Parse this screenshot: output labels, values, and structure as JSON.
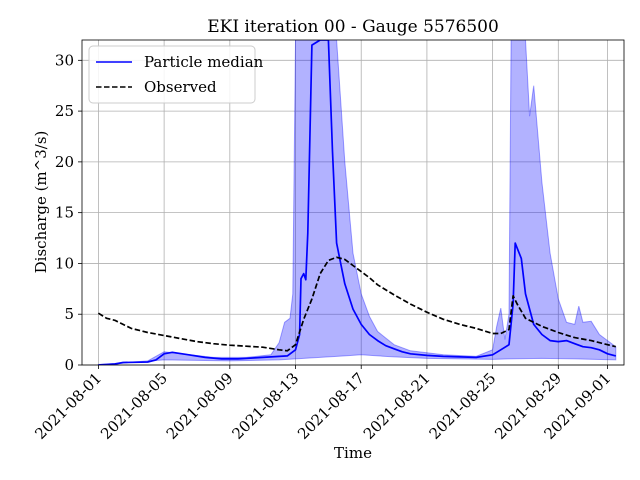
{
  "chart_data": {
    "type": "line",
    "title": "EKI iteration 00 - Gauge 5576500",
    "xlabel": "Time",
    "ylabel": "Discharge (m^3/s)",
    "x_start": "2021-08-01",
    "x_end": "2021-09-01",
    "xlim": [
      "2021-07-31",
      "2021-09-02"
    ],
    "ylim": [
      0,
      32
    ],
    "yticks": [
      0,
      5,
      10,
      15,
      20,
      25,
      30
    ],
    "xticks": [
      "2021-08-01",
      "2021-08-05",
      "2021-08-09",
      "2021-08-13",
      "2021-08-17",
      "2021-08-21",
      "2021-08-25",
      "2021-08-29",
      "2021-09-01"
    ],
    "grid": true,
    "legend": {
      "position": "top-left",
      "entries": [
        "Particle median",
        "Observed"
      ]
    },
    "series": [
      {
        "name": "Particle median",
        "color": "#0000ff",
        "style": "solid",
        "points": [
          [
            "2021-08-01 00:00",
            0.0
          ],
          [
            "2021-08-02 00:00",
            0.1
          ],
          [
            "2021-08-02 12:00",
            0.25
          ],
          [
            "2021-08-04 00:00",
            0.3
          ],
          [
            "2021-08-04 12:00",
            0.5
          ],
          [
            "2021-08-05 00:00",
            1.1
          ],
          [
            "2021-08-05 12:00",
            1.25
          ],
          [
            "2021-08-06 12:00",
            1.0
          ],
          [
            "2021-08-07 12:00",
            0.75
          ],
          [
            "2021-08-08 12:00",
            0.6
          ],
          [
            "2021-08-09 12:00",
            0.6
          ],
          [
            "2021-08-10 12:00",
            0.7
          ],
          [
            "2021-08-11 12:00",
            0.8
          ],
          [
            "2021-08-12 12:00",
            0.9
          ],
          [
            "2021-08-13 00:00",
            1.5
          ],
          [
            "2021-08-13 06:00",
            3.0
          ],
          [
            "2021-08-13 08:00",
            8.5
          ],
          [
            "2021-08-13 12:00",
            9.0
          ],
          [
            "2021-08-13 15:00",
            8.4
          ],
          [
            "2021-08-13 18:00",
            13.0
          ],
          [
            "2021-08-14 00:00",
            31.5
          ],
          [
            "2021-08-14 12:00",
            32.0
          ],
          [
            "2021-08-15 00:00",
            32.0
          ],
          [
            "2021-08-15 06:00",
            21.0
          ],
          [
            "2021-08-15 12:00",
            12.0
          ],
          [
            "2021-08-16 00:00",
            8.0
          ],
          [
            "2021-08-16 12:00",
            5.5
          ],
          [
            "2021-08-17 00:00",
            4.0
          ],
          [
            "2021-08-17 12:00",
            3.0
          ],
          [
            "2021-08-18 00:00",
            2.4
          ],
          [
            "2021-08-18 12:00",
            1.9
          ],
          [
            "2021-08-19 00:00",
            1.6
          ],
          [
            "2021-08-19 12:00",
            1.3
          ],
          [
            "2021-08-20 00:00",
            1.1
          ],
          [
            "2021-08-21 00:00",
            0.95
          ],
          [
            "2021-08-22 00:00",
            0.85
          ],
          [
            "2021-08-23 00:00",
            0.8
          ],
          [
            "2021-08-24 00:00",
            0.75
          ],
          [
            "2021-08-25 00:00",
            1.0
          ],
          [
            "2021-08-25 12:00",
            1.5
          ],
          [
            "2021-08-26 00:00",
            2.0
          ],
          [
            "2021-08-26 06:00",
            6.0
          ],
          [
            "2021-08-26 09:00",
            12.0
          ],
          [
            "2021-08-26 12:00",
            11.5
          ],
          [
            "2021-08-26 18:00",
            10.5
          ],
          [
            "2021-08-27 00:00",
            7.0
          ],
          [
            "2021-08-27 12:00",
            4.0
          ],
          [
            "2021-08-28 00:00",
            3.0
          ],
          [
            "2021-08-28 12:00",
            2.4
          ],
          [
            "2021-08-29 00:00",
            2.3
          ],
          [
            "2021-08-29 12:00",
            2.4
          ],
          [
            "2021-08-30 00:00",
            2.1
          ],
          [
            "2021-08-30 12:00",
            1.8
          ],
          [
            "2021-08-31 00:00",
            1.7
          ],
          [
            "2021-08-31 12:00",
            1.5
          ],
          [
            "2021-09-01 00:00",
            1.1
          ],
          [
            "2021-09-01 12:00",
            0.9
          ]
        ]
      },
      {
        "name": "Observed",
        "color": "#000000",
        "style": "dashed",
        "points": [
          [
            "2021-08-01 00:00",
            5.1
          ],
          [
            "2021-08-01 12:00",
            4.6
          ],
          [
            "2021-08-02 00:00",
            4.4
          ],
          [
            "2021-08-02 12:00",
            4.0
          ],
          [
            "2021-08-03 00:00",
            3.6
          ],
          [
            "2021-08-04 00:00",
            3.2
          ],
          [
            "2021-08-05 00:00",
            2.9
          ],
          [
            "2021-08-06 00:00",
            2.6
          ],
          [
            "2021-08-07 00:00",
            2.3
          ],
          [
            "2021-08-08 00:00",
            2.1
          ],
          [
            "2021-08-09 00:00",
            1.95
          ],
          [
            "2021-08-10 00:00",
            1.85
          ],
          [
            "2021-08-11 00:00",
            1.75
          ],
          [
            "2021-08-12 00:00",
            1.5
          ],
          [
            "2021-08-12 12:00",
            1.4
          ],
          [
            "2021-08-13 00:00",
            2.0
          ],
          [
            "2021-08-13 12:00",
            4.5
          ],
          [
            "2021-08-14 00:00",
            6.5
          ],
          [
            "2021-08-14 12:00",
            9.0
          ],
          [
            "2021-08-15 00:00",
            10.3
          ],
          [
            "2021-08-15 12:00",
            10.6
          ],
          [
            "2021-08-16 00:00",
            10.4
          ],
          [
            "2021-08-16 12:00",
            9.8
          ],
          [
            "2021-08-17 00:00",
            9.2
          ],
          [
            "2021-08-17 12:00",
            8.6
          ],
          [
            "2021-08-18 00:00",
            7.9
          ],
          [
            "2021-08-19 00:00",
            6.9
          ],
          [
            "2021-08-20 00:00",
            6.0
          ],
          [
            "2021-08-21 00:00",
            5.2
          ],
          [
            "2021-08-22 00:00",
            4.5
          ],
          [
            "2021-08-23 00:00",
            4.0
          ],
          [
            "2021-08-24 00:00",
            3.6
          ],
          [
            "2021-08-25 00:00",
            3.1
          ],
          [
            "2021-08-25 12:00",
            3.1
          ],
          [
            "2021-08-26 00:00",
            3.5
          ],
          [
            "2021-08-26 06:00",
            6.8
          ],
          [
            "2021-08-26 12:00",
            6.0
          ],
          [
            "2021-08-27 00:00",
            4.6
          ],
          [
            "2021-08-28 00:00",
            3.8
          ],
          [
            "2021-08-29 00:00",
            3.2
          ],
          [
            "2021-08-30 00:00",
            2.7
          ],
          [
            "2021-08-31 00:00",
            2.4
          ],
          [
            "2021-09-01 00:00",
            2.0
          ],
          [
            "2021-09-01 12:00",
            1.8
          ]
        ]
      }
    ],
    "band": {
      "color": "#0000ff",
      "opacity": 0.3,
      "upper": [
        [
          "2021-08-01 00:00",
          0.05
        ],
        [
          "2021-08-02 00:00",
          0.15
        ],
        [
          "2021-08-04 00:00",
          0.4
        ],
        [
          "2021-08-05 00:00",
          1.3
        ],
        [
          "2021-08-06 00:00",
          1.1
        ],
        [
          "2021-08-08 00:00",
          0.75
        ],
        [
          "2021-08-10 00:00",
          0.75
        ],
        [
          "2021-08-11 12:00",
          1.0
        ],
        [
          "2021-08-12 00:00",
          2.2
        ],
        [
          "2021-08-12 08:00",
          4.2
        ],
        [
          "2021-08-12 16:00",
          4.6
        ],
        [
          "2021-08-12 20:00",
          7.0
        ],
        [
          "2021-08-13 00:00",
          32.0
        ],
        [
          "2021-08-15 00:00",
          32.0
        ],
        [
          "2021-08-15 12:00",
          32.0
        ],
        [
          "2021-08-16 00:00",
          20.0
        ],
        [
          "2021-08-16 12:00",
          11.0
        ],
        [
          "2021-08-17 00:00",
          7.0
        ],
        [
          "2021-08-17 12:00",
          4.8
        ],
        [
          "2021-08-18 00:00",
          3.3
        ],
        [
          "2021-08-19 00:00",
          2.0
        ],
        [
          "2021-08-20 00:00",
          1.4
        ],
        [
          "2021-08-22 00:00",
          1.0
        ],
        [
          "2021-08-24 00:00",
          0.85
        ],
        [
          "2021-08-25 00:00",
          1.5
        ],
        [
          "2021-08-25 06:00",
          3.8
        ],
        [
          "2021-08-25 12:00",
          5.6
        ],
        [
          "2021-08-25 18:00",
          2.5
        ],
        [
          "2021-08-26 00:00",
          5.0
        ],
        [
          "2021-08-26 03:00",
          32.0
        ],
        [
          "2021-08-27 00:00",
          32.0
        ],
        [
          "2021-08-27 06:00",
          24.5
        ],
        [
          "2021-08-27 12:00",
          27.5
        ],
        [
          "2021-08-28 00:00",
          18.0
        ],
        [
          "2021-08-28 12:00",
          11.0
        ],
        [
          "2021-08-29 00:00",
          6.5
        ],
        [
          "2021-08-29 12:00",
          4.2
        ],
        [
          "2021-08-30 00:00",
          4.0
        ],
        [
          "2021-08-30 06:00",
          5.8
        ],
        [
          "2021-08-30 12:00",
          4.2
        ],
        [
          "2021-08-31 00:00",
          4.3
        ],
        [
          "2021-08-31 12:00",
          3.0
        ],
        [
          "2021-09-01 00:00",
          2.4
        ],
        [
          "2021-09-01 12:00",
          1.8
        ]
      ],
      "lower": [
        [
          "2021-08-01 00:00",
          0.0
        ],
        [
          "2021-08-05 00:00",
          0.5
        ],
        [
          "2021-08-09 00:00",
          0.4
        ],
        [
          "2021-08-12 00:00",
          0.5
        ],
        [
          "2021-08-13 00:00",
          0.6
        ],
        [
          "2021-08-14 00:00",
          0.7
        ],
        [
          "2021-08-15 00:00",
          0.8
        ],
        [
          "2021-08-16 00:00",
          0.9
        ],
        [
          "2021-08-17 00:00",
          1.0
        ],
        [
          "2021-08-19 00:00",
          0.8
        ],
        [
          "2021-08-21 00:00",
          0.65
        ],
        [
          "2021-08-23 00:00",
          0.6
        ],
        [
          "2021-08-25 00:00",
          0.55
        ],
        [
          "2021-08-26 00:00",
          0.6
        ],
        [
          "2021-08-28 00:00",
          0.65
        ],
        [
          "2021-08-30 00:00",
          0.6
        ],
        [
          "2021-09-01 12:00",
          0.5
        ]
      ]
    }
  }
}
